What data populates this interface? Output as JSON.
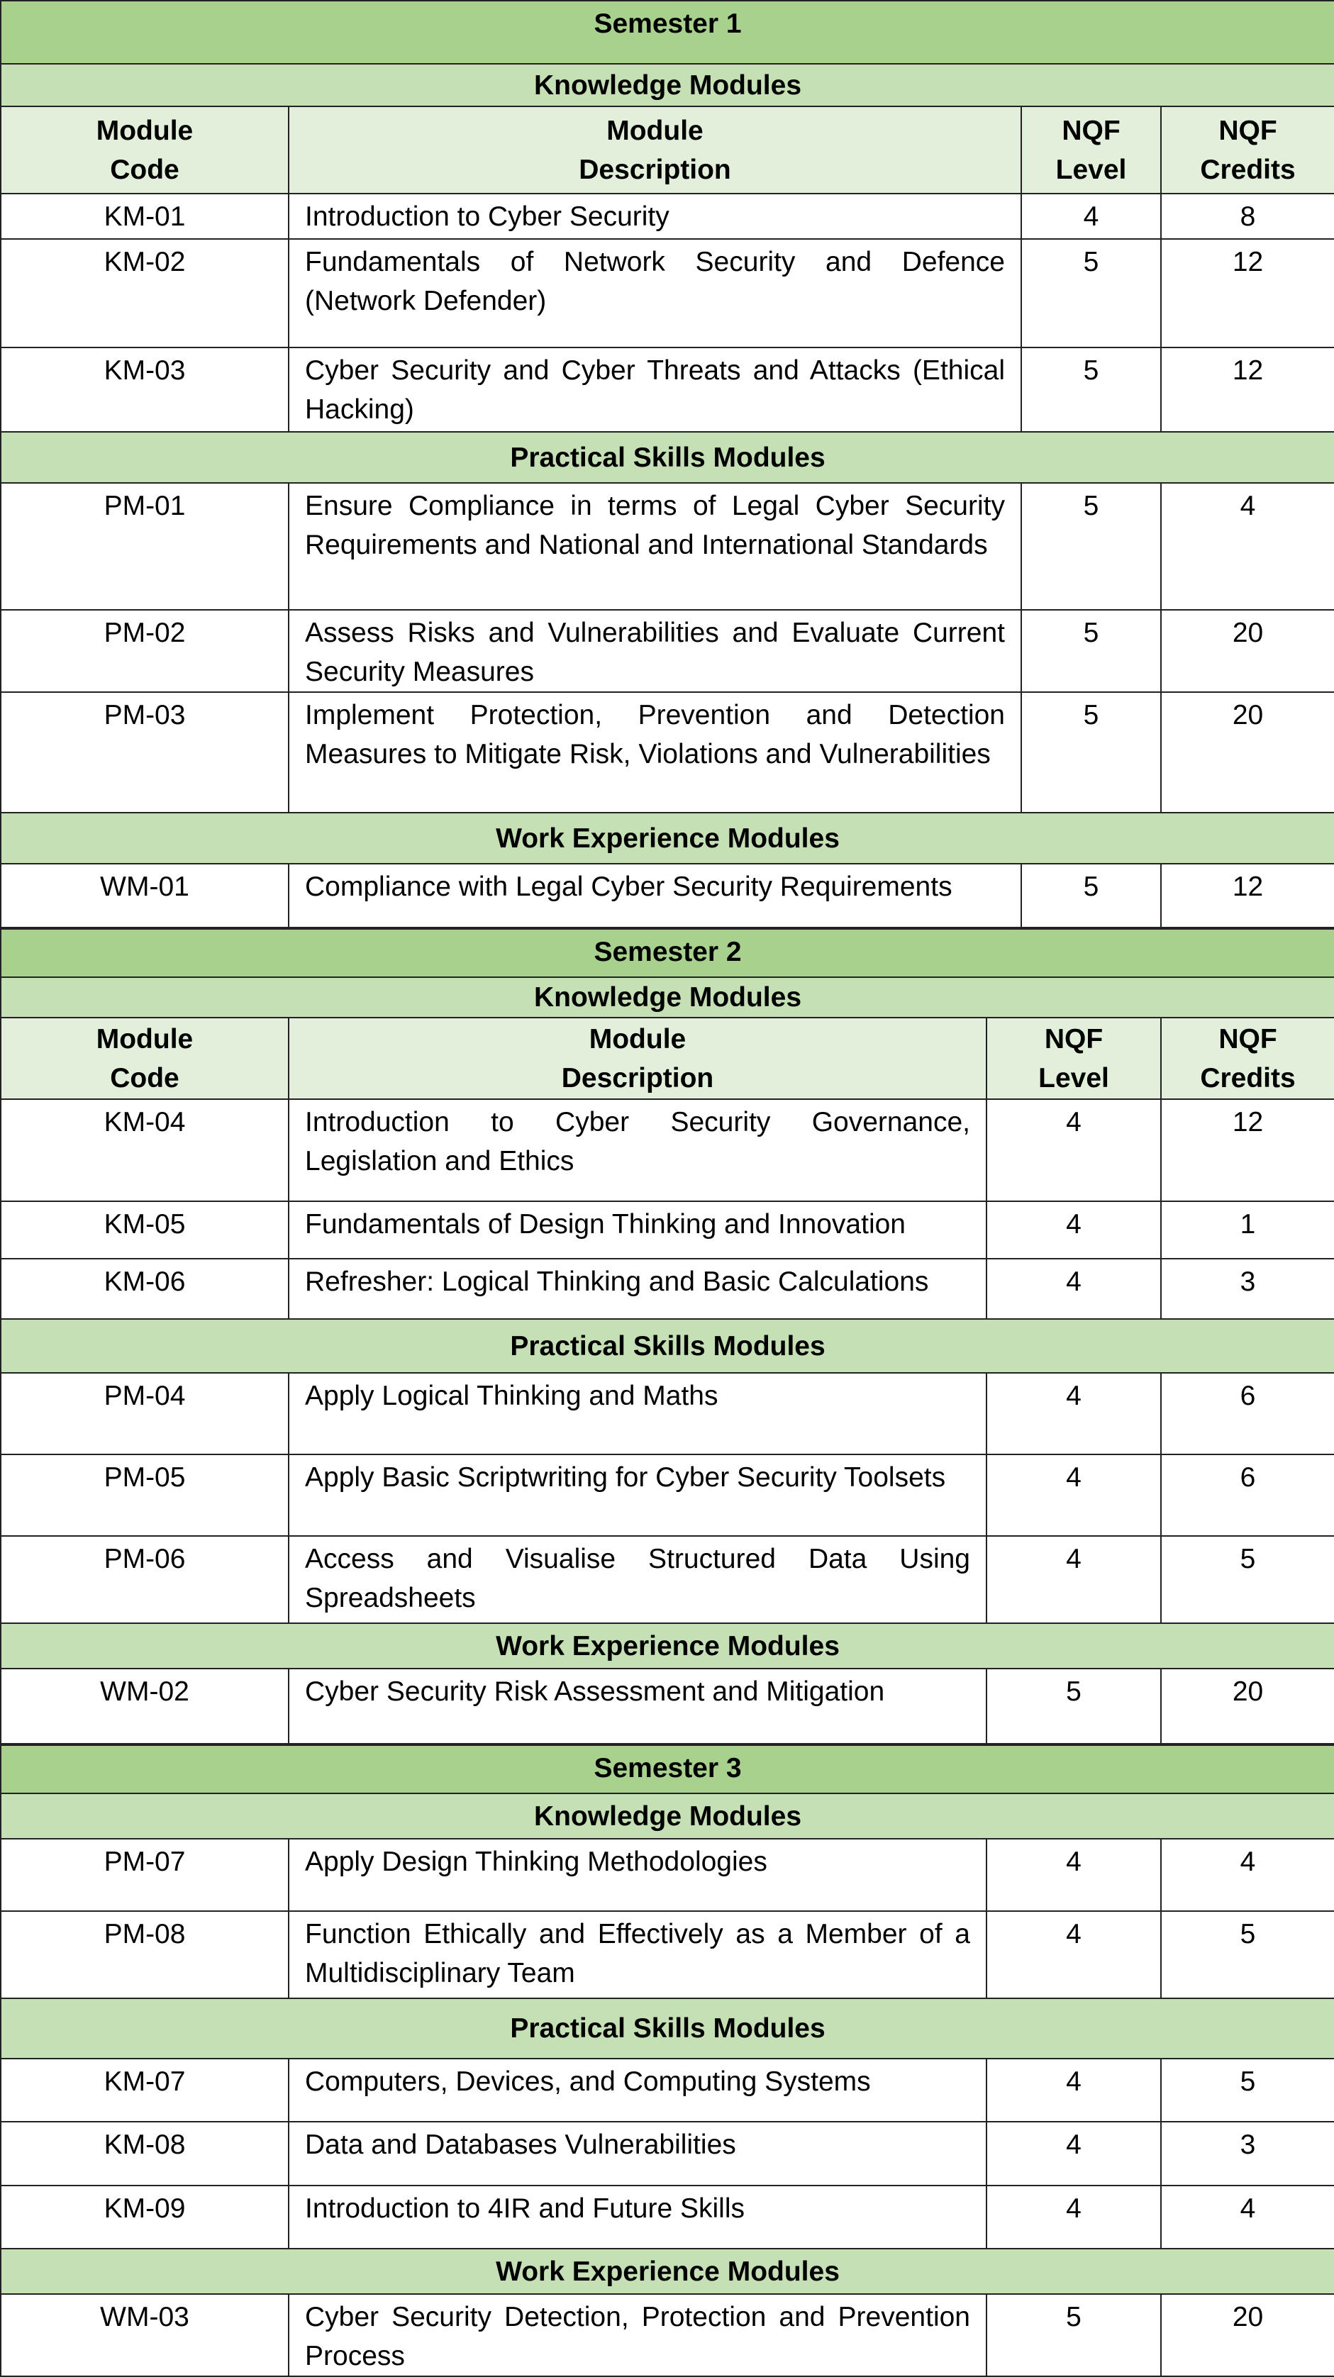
{
  "colors": {
    "semester_bg": "#a9d18e",
    "section_bg": "#c5e0b4",
    "header_bg": "#e2efda"
  },
  "semesters": [
    {
      "title": "Semester 1",
      "header": {
        "code": "Module\nCode",
        "description": "Module\nDescription",
        "level": "NQF\nLevel",
        "credits": "NQF\nCredits"
      },
      "sections": [
        {
          "title": "Knowledge Modules",
          "show_header": true,
          "rows": [
            {
              "code": "KM-01",
              "description": "Introduction to Cyber Security",
              "level": "4",
              "credits": "8"
            },
            {
              "code": "KM-02",
              "description": "Fundamentals of Network Security and Defence (Network Defender)",
              "level": "5",
              "credits": "12"
            },
            {
              "code": "KM-03",
              "description": "Cyber Security and Cyber Threats and Attacks (Ethical Hacking)",
              "level": "5",
              "credits": "12"
            }
          ]
        },
        {
          "title": "Practical Skills Modules",
          "rows": [
            {
              "code": "PM-01",
              "description": "Ensure Compliance in terms of Legal Cyber Security Requirements and National and International Standards",
              "level": "5",
              "credits": "4"
            },
            {
              "code": "PM-02",
              "description": "Assess Risks and Vulnerabilities and Evaluate Current Security Measures",
              "level": "5",
              "credits": "20"
            },
            {
              "code": "PM-03",
              "description": "Implement Protection, Prevention and Detection Measures to Mitigate Risk, Violations and Vulnerabilities",
              "level": "5",
              "credits": "20"
            }
          ]
        },
        {
          "title": "Work Experience Modules",
          "rows": [
            {
              "code": "WM-01",
              "description": "Compliance with Legal Cyber Security Requirements",
              "level": "5",
              "credits": "12"
            }
          ]
        }
      ]
    },
    {
      "title": "Semester 2",
      "header": {
        "code": "Module\nCode",
        "description": "Module\nDescription",
        "level": "NQF\nLevel",
        "credits": "NQF\nCredits"
      },
      "sections": [
        {
          "title": "Knowledge Modules",
          "show_header": true,
          "rows": [
            {
              "code": "KM-04",
              "description": "Introduction to Cyber Security Governance, Legislation and Ethics",
              "level": "4",
              "credits": "12"
            },
            {
              "code": "KM-05",
              "description": "Fundamentals of Design Thinking and Innovation",
              "level": "4",
              "credits": "1"
            },
            {
              "code": "KM-06",
              "description": "Refresher: Logical Thinking and Basic Calculations",
              "level": "4",
              "credits": "3"
            }
          ]
        },
        {
          "title": "Practical Skills Modules",
          "rows": [
            {
              "code": "PM-04",
              "description": "Apply Logical Thinking and Maths",
              "level": "4",
              "credits": "6"
            },
            {
              "code": "PM-05",
              "description": "Apply Basic Scriptwriting for Cyber Security Toolsets",
              "level": "4",
              "credits": "6"
            },
            {
              "code": "PM-06",
              "description": "Access and Visualise Structured Data Using Spreadsheets",
              "level": "4",
              "credits": "5"
            }
          ]
        },
        {
          "title": "Work Experience Modules",
          "rows": [
            {
              "code": "WM-02",
              "description": "Cyber Security Risk Assessment and Mitigation",
              "level": "5",
              "credits": "20"
            }
          ]
        }
      ]
    },
    {
      "title": "Semester 3",
      "sections": [
        {
          "title": "Knowledge Modules",
          "rows": [
            {
              "code": "PM-07",
              "description": "Apply Design Thinking Methodologies",
              "level": "4",
              "credits": "4"
            },
            {
              "code": "PM-08",
              "description": "Function Ethically and Effectively as a Member of a Multidisciplinary Team",
              "level": "4",
              "credits": "5"
            }
          ]
        },
        {
          "title": "Practical Skills Modules",
          "rows": [
            {
              "code": "KM-07",
              "description": "Computers, Devices, and Computing Systems",
              "level": "4",
              "credits": "5"
            },
            {
              "code": "KM-08",
              "description": "Data and Databases Vulnerabilities",
              "level": "4",
              "credits": "3"
            },
            {
              "code": "KM-09",
              "description": "Introduction to 4IR and Future Skills",
              "level": "4",
              "credits": "4"
            }
          ]
        },
        {
          "title": "Work Experience Modules",
          "rows": [
            {
              "code": "WM-03",
              "description": "Cyber Security Detection, Protection and Prevention Process",
              "level": "5",
              "credits": "20"
            }
          ]
        }
      ]
    }
  ]
}
